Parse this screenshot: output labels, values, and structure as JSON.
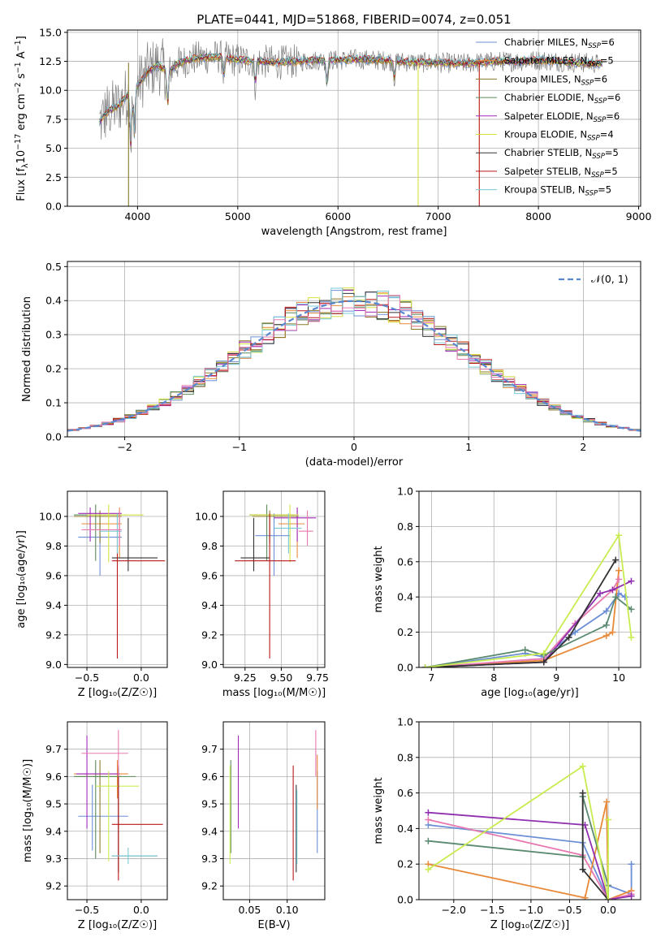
{
  "title": "PLATE=0441, MJD=51868, FIBERID=0074, z=0.051",
  "colors": {
    "chabrier_miles": "#6b8fd6",
    "salpeter_miles": "#e88a3a",
    "kroupa_miles": "#8b7a2a",
    "chabrier_elodie": "#5a8a5a",
    "salpeter_elodie": "#a02ab8",
    "kroupa_elodie": "#d8e040",
    "chabrier_stelib": "#333333",
    "salpeter_stelib": "#b81818",
    "kroupa_stelib": "#78c8d8",
    "data": "#808080",
    "pink": "#e878b0",
    "lime": "#c8ec50",
    "teal": "#5a8a70",
    "purple": "#9030b0",
    "normal": "#5a88d0",
    "grid": "#b0b0b0"
  },
  "chart_data": [
    {
      "type": "line",
      "name": "spectrum",
      "xlabel": "wavelength [Angstrom, rest frame]",
      "ylabel_pre": "Flux [f",
      "ylabel_sub": "λ",
      "ylabel_mid": "10",
      "ylabel_sup": "−17",
      "ylabel_post": " erg cm",
      "ylabel_sup2": "−2",
      "ylabel_post2": " s",
      "ylabel_sup3": "−1",
      "ylabel_post3": " A",
      "ylabel_sup4": "−1",
      "ylabel_end": "]",
      "xlim": [
        3300,
        9020
      ],
      "ylim": [
        0,
        15.2
      ],
      "xticks": [
        4000,
        5000,
        6000,
        7000,
        8000,
        9000
      ],
      "yticks": [
        0.0,
        2.5,
        5.0,
        7.5,
        10.0,
        12.5,
        15.0
      ],
      "xtick_labels": [
        "4000",
        "5000",
        "6000",
        "7000",
        "8000",
        "9000"
      ],
      "ytick_labels": [
        "0.0",
        "2.5",
        "5.0",
        "7.5",
        "10.0",
        "12.5",
        "15.0"
      ],
      "continuum": {
        "x": [
          3600,
          3700,
          3800,
          3900,
          4000,
          4100,
          4200,
          4300,
          4400,
          4500,
          4600,
          4800,
          5000,
          5200,
          5400,
          5600,
          5800,
          6000,
          6200,
          6400,
          6600,
          6800,
          7000,
          7200,
          7400,
          7600,
          7800,
          8000,
          8200,
          8400,
          8600
        ],
        "y": [
          7.0,
          8.2,
          8.6,
          9.6,
          10.4,
          11.6,
          12.2,
          11.6,
          12.3,
          12.6,
          12.8,
          12.9,
          12.6,
          12.5,
          12.4,
          12.5,
          12.6,
          12.6,
          12.7,
          12.6,
          12.5,
          12.4,
          12.4,
          12.3,
          12.4,
          12.5,
          12.5,
          12.6,
          12.5,
          12.4,
          12.3
        ]
      },
      "legend": [
        {
          "pre": "Chabrier MILES, N",
          "sub": "SSP",
          "post": "=6",
          "color": "#6b8fd6"
        },
        {
          "pre": "Salpeter MILES, N",
          "sub": "SSP",
          "post": "=5",
          "color": "#e88a3a"
        },
        {
          "pre": "Kroupa MILES, N",
          "sub": "SSP",
          "post": "=6",
          "color": "#8b7a2a"
        },
        {
          "pre": "Chabrier ELODIE, N",
          "sub": "SSP",
          "post": "=6",
          "color": "#5a8a5a"
        },
        {
          "pre": "Salpeter ELODIE, N",
          "sub": "SSP",
          "post": "=6",
          "color": "#a02ab8"
        },
        {
          "pre": "Kroupa ELODIE, N",
          "sub": "SSP",
          "post": "=4",
          "color": "#d8e040"
        },
        {
          "pre": "Chabrier STELIB, N",
          "sub": "SSP",
          "post": "=5",
          "color": "#333333"
        },
        {
          "pre": "Salpeter STELIB, N",
          "sub": "SSP",
          "post": "=5",
          "color": "#b81818"
        },
        {
          "pre": "Kroupa STELIB, N",
          "sub": "SSP",
          "post": "=5",
          "color": "#78c8d8"
        }
      ],
      "spikes": [
        {
          "x": 3910,
          "color": "#8b7a2a"
        },
        {
          "x": 6800,
          "color": "#d8e040"
        },
        {
          "x": 7410,
          "color": "#b81818"
        }
      ]
    },
    {
      "type": "histogram",
      "name": "residuals",
      "xlabel": "(data-model)/error",
      "ylabel": "Normed distribution",
      "xlim": [
        -2.5,
        2.5
      ],
      "ylim": [
        0,
        0.515
      ],
      "xticks": [
        -2,
        -1,
        0,
        1,
        2
      ],
      "xtick_labels": [
        "−2",
        "−1",
        "0",
        "1",
        "2"
      ],
      "yticks": [
        0.0,
        0.1,
        0.2,
        0.3,
        0.4,
        0.5
      ],
      "ytick_labels": [
        "0.0",
        "0.1",
        "0.2",
        "0.3",
        "0.4",
        "0.5"
      ],
      "bin_width": 0.1,
      "legend_label": "𝒩(0, 1)"
    },
    {
      "type": "errorbar",
      "name": "age-vs-Z",
      "xlabel": "Z [log₁₀(Z/Z☉)]",
      "ylabel": "age  [log₁₀(age/yr)]",
      "xlim": [
        -0.68,
        0.24
      ],
      "ylim": [
        8.98,
        10.17
      ],
      "xticks": [
        -0.5,
        0.0
      ],
      "xtick_labels": [
        "−0.5",
        "0.0"
      ],
      "yticks": [
        9.0,
        9.2,
        9.4,
        9.6,
        9.8,
        10.0
      ],
      "ytick_labels": [
        "9.0",
        "9.2",
        "9.4",
        "9.6",
        "9.8",
        "10.0"
      ],
      "points": [
        {
          "x": -0.38,
          "xlo": -0.58,
          "xhi": -0.18,
          "y": 9.86,
          "ylo": 9.6,
          "yhi": 10.02,
          "color": "#6b8fd6"
        },
        {
          "x": -0.2,
          "xlo": -0.55,
          "xhi": -0.18,
          "y": 9.95,
          "ylo": 9.72,
          "yhi": 10.06,
          "color": "#e88a3a"
        },
        {
          "x": -0.38,
          "xlo": -0.62,
          "xhi": -0.18,
          "y": 10.0,
          "ylo": 9.82,
          "yhi": 10.04,
          "color": "#8b7a2a"
        },
        {
          "x": -0.42,
          "xlo": -0.62,
          "xhi": -0.18,
          "y": 10.01,
          "ylo": 9.7,
          "yhi": 10.08,
          "color": "#5a8a5a"
        },
        {
          "x": -0.47,
          "xlo": -0.58,
          "xhi": -0.18,
          "y": 10.02,
          "ylo": 9.83,
          "yhi": 10.06,
          "color": "#a02ab8"
        },
        {
          "x": -0.3,
          "xlo": -0.5,
          "xhi": 0.02,
          "y": 10.01,
          "ylo": 9.69,
          "yhi": 10.08,
          "color": "#d8e040"
        },
        {
          "x": -0.12,
          "xlo": -0.27,
          "xhi": 0.15,
          "y": 9.72,
          "ylo": 9.63,
          "yhi": 9.99,
          "color": "#333333"
        },
        {
          "x": -0.22,
          "xlo": -0.27,
          "xhi": 0.22,
          "y": 9.7,
          "ylo": 9.04,
          "yhi": 10.02,
          "color": "#b81818"
        },
        {
          "x": -0.22,
          "xlo": -0.38,
          "xhi": -0.18,
          "y": 9.9,
          "ylo": 9.75,
          "yhi": 10.02,
          "color": "#78c8d8"
        },
        {
          "x": -0.2,
          "xlo": -0.55,
          "xhi": -0.18,
          "y": 9.91,
          "ylo": 9.8,
          "yhi": 10.04,
          "color": "#e878b0"
        }
      ]
    },
    {
      "type": "errorbar",
      "name": "age-vs-mass",
      "xlabel": "mass [log₁₀(M/M☉)]",
      "ylabel": "",
      "xlim": [
        9.1,
        9.8
      ],
      "ylim": [
        8.98,
        10.17
      ],
      "xticks": [
        9.25,
        9.5,
        9.75
      ],
      "xtick_labels": [
        "9.25",
        "9.50",
        "9.75"
      ],
      "yticks": [
        9.0,
        9.2,
        9.4,
        9.6,
        9.8,
        10.0
      ],
      "ytick_labels": [
        "9.0",
        "9.2",
        "9.4",
        "9.6",
        "9.8",
        "10.0"
      ],
      "points": [
        {
          "x": 9.45,
          "xlo": 9.32,
          "xhi": 9.56,
          "y": 9.87,
          "ylo": 9.6,
          "yhi": 10.02,
          "color": "#6b8fd6"
        },
        {
          "x": 9.61,
          "xlo": 9.48,
          "xhi": 9.66,
          "y": 9.95,
          "ylo": 9.72,
          "yhi": 10.06,
          "color": "#e88a3a"
        },
        {
          "x": 9.42,
          "xlo": 9.3,
          "xhi": 9.62,
          "y": 10.0,
          "ylo": 9.82,
          "yhi": 10.04,
          "color": "#8b7a2a"
        },
        {
          "x": 9.4,
          "xlo": 9.28,
          "xhi": 9.6,
          "y": 10.01,
          "ylo": 9.7,
          "yhi": 10.08,
          "color": "#5a8a5a"
        },
        {
          "x": 9.61,
          "xlo": 9.45,
          "xhi": 9.74,
          "y": 9.99,
          "ylo": 9.83,
          "yhi": 10.06,
          "color": "#a02ab8"
        },
        {
          "x": 9.56,
          "xlo": 9.28,
          "xhi": 9.62,
          "y": 10.01,
          "ylo": 9.69,
          "yhi": 10.08,
          "color": "#d8e040"
        },
        {
          "x": 9.31,
          "xlo": 9.22,
          "xhi": 9.42,
          "y": 9.72,
          "ylo": 9.63,
          "yhi": 9.99,
          "color": "#333333"
        },
        {
          "x": 9.42,
          "xlo": 9.18,
          "xhi": 9.6,
          "y": 9.7,
          "ylo": 9.04,
          "yhi": 10.02,
          "color": "#b81818"
        },
        {
          "x": 9.55,
          "xlo": 9.45,
          "xhi": 9.64,
          "y": 9.92,
          "ylo": 9.75,
          "yhi": 10.02,
          "color": "#78c8d8"
        },
        {
          "x": 9.68,
          "xlo": 9.62,
          "xhi": 9.72,
          "y": 9.9,
          "ylo": 9.8,
          "yhi": 10.04,
          "color": "#e878b0"
        }
      ]
    },
    {
      "type": "line",
      "name": "mass-weight-vs-age",
      "xlabel": "age  [log₁₀(age/yr)]",
      "ylabel": "mass weight",
      "xlim": [
        6.8,
        10.35
      ],
      "ylim": [
        0,
        1.0
      ],
      "xticks": [
        7,
        8,
        9,
        10
      ],
      "xtick_labels": [
        "7",
        "8",
        "9",
        "10"
      ],
      "yticks": [
        0.0,
        0.2,
        0.4,
        0.6,
        0.8,
        1.0
      ],
      "ytick_labels": [
        "0.0",
        "0.2",
        "0.4",
        "0.6",
        "0.8",
        "1.0"
      ],
      "series": [
        {
          "color": "#6b8fd6",
          "x": [
            6.9,
            8.5,
            8.8,
            9.3,
            9.8,
            10.0,
            10.1
          ],
          "y": [
            0.0,
            0.08,
            0.06,
            0.2,
            0.32,
            0.42,
            0.4
          ]
        },
        {
          "color": "#e88a3a",
          "x": [
            6.9,
            8.8,
            9.8,
            9.9,
            10.0
          ],
          "y": [
            0.0,
            0.04,
            0.18,
            0.2,
            0.55
          ]
        },
        {
          "color": "#e878b0",
          "x": [
            6.9,
            8.8,
            9.3,
            9.9,
            10.0
          ],
          "y": [
            0.0,
            0.05,
            0.25,
            0.44,
            0.5
          ]
        },
        {
          "color": "#9030b0",
          "x": [
            6.9,
            8.8,
            9.7,
            9.9,
            10.2
          ],
          "y": [
            0.0,
            0.03,
            0.42,
            0.44,
            0.49
          ]
        },
        {
          "color": "#5a8a70",
          "x": [
            6.9,
            8.5,
            8.8,
            9.8,
            9.95,
            10.2
          ],
          "y": [
            0.0,
            0.1,
            0.07,
            0.24,
            0.4,
            0.33
          ]
        },
        {
          "color": "#333333",
          "x": [
            6.9,
            8.8,
            9.2,
            9.95
          ],
          "y": [
            0.0,
            0.03,
            0.17,
            0.61
          ]
        },
        {
          "color": "#c8ec50",
          "x": [
            6.9,
            8.8,
            10.0,
            10.2
          ],
          "y": [
            0.0,
            0.08,
            0.75,
            0.17
          ]
        }
      ]
    },
    {
      "type": "errorbar",
      "name": "mass-vs-Z",
      "xlabel": "Z [log₁₀(Z/Z☉)]",
      "ylabel": "mass [log₁₀(M/M☉)]",
      "xlim": [
        -0.68,
        0.24
      ],
      "ylim": [
        9.15,
        9.8
      ],
      "xticks": [
        -0.5,
        0.0
      ],
      "xtick_labels": [
        "−0.5",
        "0.0"
      ],
      "yticks": [
        9.2,
        9.3,
        9.4,
        9.5,
        9.6,
        9.7
      ],
      "ytick_labels": [
        "9.2",
        "9.3",
        "9.4",
        "9.5",
        "9.6",
        "9.7"
      ],
      "points": [
        {
          "x": -0.45,
          "xlo": -0.58,
          "xhi": -0.12,
          "y": 9.455,
          "ylo": 9.33,
          "yhi": 9.57,
          "color": "#6b8fd6"
        },
        {
          "x": -0.22,
          "xlo": -0.62,
          "xhi": -0.12,
          "y": 9.61,
          "ylo": 9.52,
          "yhi": 9.66,
          "color": "#e88a3a"
        },
        {
          "x": -0.38,
          "xlo": -0.62,
          "xhi": -0.18,
          "y": 9.6,
          "ylo": 9.32,
          "yhi": 9.66,
          "color": "#8b7a2a"
        },
        {
          "x": -0.42,
          "xlo": -0.62,
          "xhi": -0.05,
          "y": 9.6,
          "ylo": 9.3,
          "yhi": 9.66,
          "color": "#5a8a5a"
        },
        {
          "x": -0.5,
          "xlo": -0.6,
          "xhi": -0.2,
          "y": 9.61,
          "ylo": 9.41,
          "yhi": 9.75,
          "color": "#a02ab8"
        },
        {
          "x": -0.3,
          "xlo": -0.42,
          "xhi": -0.02,
          "y": 9.565,
          "ylo": 9.29,
          "yhi": 9.62,
          "color": "#c8ec50"
        },
        {
          "x": -0.21,
          "xlo": -0.27,
          "xhi": 0.15,
          "y": 9.31,
          "ylo": 9.25,
          "yhi": 9.63,
          "color": "#333333"
        },
        {
          "x": -0.21,
          "xlo": -0.27,
          "xhi": 0.2,
          "y": 9.425,
          "ylo": 9.22,
          "yhi": 9.64,
          "color": "#b81818"
        },
        {
          "x": -0.12,
          "xlo": -0.27,
          "xhi": 0.15,
          "y": 9.31,
          "ylo": 9.28,
          "yhi": 9.34,
          "color": "#78c8d8"
        },
        {
          "x": -0.21,
          "xlo": -0.55,
          "xhi": -0.12,
          "y": 9.685,
          "ylo": 9.6,
          "yhi": 9.77,
          "color": "#e878b0"
        }
      ]
    },
    {
      "type": "errorbar",
      "name": "mass-vs-EBV",
      "xlabel": "E(B-V)",
      "ylabel": "",
      "xlim": [
        0.015,
        0.15
      ],
      "ylim": [
        9.15,
        9.8
      ],
      "xticks": [
        0.05,
        0.1
      ],
      "xtick_labels": [
        "0.05",
        "0.10"
      ],
      "yticks": [
        9.2,
        9.3,
        9.4,
        9.5,
        9.6,
        9.7
      ],
      "ytick_labels": [
        "9.2",
        "9.3",
        "9.4",
        "9.5",
        "9.6",
        "9.7"
      ],
      "points": [
        {
          "x": 0.14,
          "ylo": 9.32,
          "yhi": 9.62,
          "color": "#6b8fd6"
        },
        {
          "x": 0.14,
          "ylo": 9.48,
          "yhi": 9.68,
          "color": "#e88a3a"
        },
        {
          "x": 0.025,
          "ylo": 9.32,
          "yhi": 9.66,
          "color": "#5a8a5a"
        },
        {
          "x": 0.024,
          "ylo": 9.28,
          "yhi": 9.64,
          "color": "#c8ec50"
        },
        {
          "x": 0.035,
          "ylo": 9.41,
          "yhi": 9.75,
          "color": "#a02ab8"
        },
        {
          "x": 0.112,
          "ylo": 9.25,
          "yhi": 9.57,
          "color": "#333333"
        },
        {
          "x": 0.108,
          "ylo": 9.22,
          "yhi": 9.64,
          "color": "#b81818"
        },
        {
          "x": 0.113,
          "ylo": 9.28,
          "yhi": 9.55,
          "color": "#78c8d8"
        },
        {
          "x": 0.138,
          "ylo": 9.6,
          "yhi": 9.77,
          "color": "#e878b0"
        }
      ]
    },
    {
      "type": "line",
      "name": "mass-weight-vs-Z",
      "xlabel": "Z [log₁₀(Z/Z☉)]",
      "ylabel": "mass weight",
      "xlim": [
        -2.45,
        0.42
      ],
      "ylim": [
        0,
        1.0
      ],
      "xticks": [
        -2.0,
        -1.5,
        -1.0,
        -0.5,
        0.0
      ],
      "xtick_labels": [
        "−2.0",
        "−1.5",
        "−1.0",
        "−0.5",
        "0.0"
      ],
      "yticks": [
        0.0,
        0.2,
        0.4,
        0.6,
        0.8,
        1.0
      ],
      "ytick_labels": [
        "0.0",
        "0.2",
        "0.4",
        "0.6",
        "0.8",
        "1.0"
      ],
      "series": [
        {
          "color": "#6b8fd6",
          "x": [
            -2.33,
            -0.33,
            0.0,
            0.0,
            0.3,
            0.3
          ],
          "y": [
            0.42,
            0.32,
            0.0,
            0.08,
            0.03,
            0.2
          ]
        },
        {
          "color": "#e88a3a",
          "x": [
            -2.33,
            -0.3,
            -0.02,
            0.0,
            0.3
          ],
          "y": [
            0.2,
            0.01,
            0.55,
            0.0,
            0.05
          ]
        },
        {
          "color": "#e878b0",
          "x": [
            -2.33,
            -0.33,
            0.0,
            0.3
          ],
          "y": [
            0.45,
            0.25,
            0.0,
            0.03
          ]
        },
        {
          "color": "#9030b0",
          "x": [
            -2.33,
            -0.3,
            0.0,
            0.3
          ],
          "y": [
            0.49,
            0.42,
            0.0,
            0.02
          ]
        },
        {
          "color": "#5a8a70",
          "x": [
            -2.33,
            -0.33,
            -0.33,
            0.0,
            0.0
          ],
          "y": [
            0.33,
            0.24,
            0.58,
            0.08,
            0.0
          ]
        },
        {
          "color": "#333333",
          "x": [
            -0.33,
            -0.33,
            0.0
          ],
          "y": [
            0.6,
            0.17,
            0.0
          ]
        },
        {
          "color": "#c8ec50",
          "x": [
            -2.33,
            -0.33,
            0.0,
            0.0
          ],
          "y": [
            0.17,
            0.75,
            0.0,
            0.45
          ]
        }
      ]
    }
  ]
}
